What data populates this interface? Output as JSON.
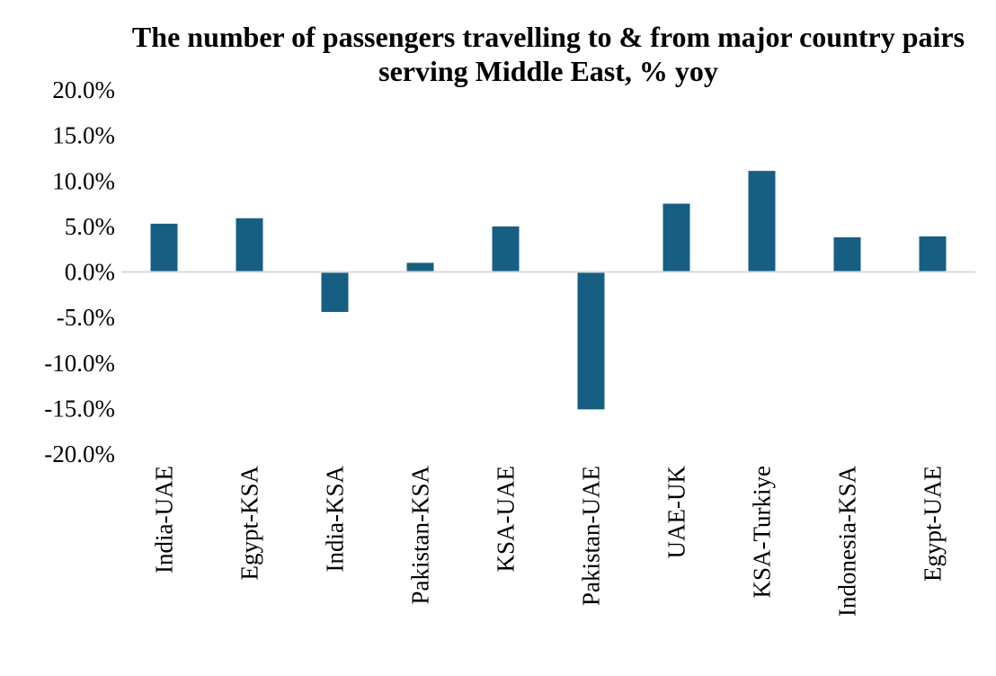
{
  "chart_data": {
    "type": "bar",
    "title": "The number of passengers travelling to & from major country pairs serving Middle East, % yoy",
    "categories": [
      "India-UAE",
      "Egypt-KSA",
      "India-KSA",
      "Pakistan-KSA",
      "KSA-UAE",
      "Pakistan-UAE",
      "UAE-UK",
      "KSA-Turkiye",
      "Indonesia-KSA",
      "Egypt-UAE"
    ],
    "values": [
      5.3,
      5.9,
      -4.4,
      1.0,
      5.0,
      -15.1,
      7.5,
      11.1,
      3.8,
      3.9
    ],
    "ylim": [
      -20,
      20
    ],
    "yticks": [
      20,
      15,
      10,
      5,
      0,
      -5,
      -10,
      -15,
      -20
    ],
    "ytick_labels": [
      "20.0%",
      "15.0%",
      "10.0%",
      "5.0%",
      "0.0%",
      "-5.0%",
      "-10.0%",
      "-15.0%",
      "-20.0%"
    ],
    "xlabel": "",
    "ylabel": "",
    "grid": false,
    "legend": "none",
    "colors": {
      "bar": "#175f82",
      "baseline": "#d9d9d9"
    }
  }
}
